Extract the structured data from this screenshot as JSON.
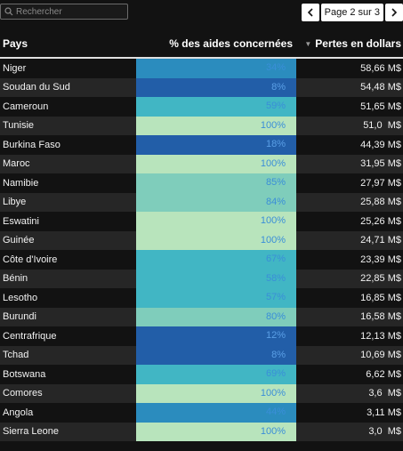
{
  "search": {
    "placeholder": "Rechercher"
  },
  "pagination": {
    "label": "Page 2 sur 3"
  },
  "table": {
    "headers": {
      "country": "Pays",
      "percent": "% des aides concernées",
      "losses": "Pertes en dollars"
    },
    "rows": [
      {
        "country": "Niger",
        "percent": "34%",
        "loss": "58,66 M$",
        "color": "#2b8cbe"
      },
      {
        "country": "Soudan du Sud",
        "percent": "8%",
        "loss": "54,48 M$",
        "color": "#225ea8"
      },
      {
        "country": "Cameroun",
        "percent": "59%",
        "loss": "51,65 M$",
        "color": "#41b6c4"
      },
      {
        "country": "Tunisie",
        "percent": "100%",
        "loss": "51,0  M$",
        "color": "#b8e4bc"
      },
      {
        "country": "Burkina Faso",
        "percent": "18%",
        "loss": "44,39 M$",
        "color": "#225ea8"
      },
      {
        "country": "Maroc",
        "percent": "100%",
        "loss": "31,95 M$",
        "color": "#b8e4bc"
      },
      {
        "country": "Namibie",
        "percent": "85%",
        "loss": "27,97 M$",
        "color": "#7fcdbb"
      },
      {
        "country": "Libye",
        "percent": "84%",
        "loss": "25,88 M$",
        "color": "#7fcdbb"
      },
      {
        "country": "Eswatini",
        "percent": "100%",
        "loss": "25,26 M$",
        "color": "#b8e4bc"
      },
      {
        "country": "Guinée",
        "percent": "100%",
        "loss": "24,71 M$",
        "color": "#b8e4bc"
      },
      {
        "country": "Côte d'Ivoire",
        "percent": "67%",
        "loss": "23,39 M$",
        "color": "#41b6c4"
      },
      {
        "country": "Bénin",
        "percent": "58%",
        "loss": "22,85 M$",
        "color": "#41b6c4"
      },
      {
        "country": "Lesotho",
        "percent": "57%",
        "loss": "16,85 M$",
        "color": "#41b6c4"
      },
      {
        "country": "Burundi",
        "percent": "80%",
        "loss": "16,58 M$",
        "color": "#7fcdbb"
      },
      {
        "country": "Centrafrique",
        "percent": "12%",
        "loss": "12,13 M$",
        "color": "#225ea8"
      },
      {
        "country": "Tchad",
        "percent": "8%",
        "loss": "10,69 M$",
        "color": "#225ea8"
      },
      {
        "country": "Botswana",
        "percent": "69%",
        "loss": "6,62 M$",
        "color": "#41b6c4"
      },
      {
        "country": "Comores",
        "percent": "100%",
        "loss": "3,6  M$",
        "color": "#b8e4bc"
      },
      {
        "country": "Angola",
        "percent": "44%",
        "loss": "3,11 M$",
        "color": "#2b8cbe"
      },
      {
        "country": "Sierra Leone",
        "percent": "100%",
        "loss": "3,0  M$",
        "color": "#b8e4bc"
      }
    ]
  }
}
